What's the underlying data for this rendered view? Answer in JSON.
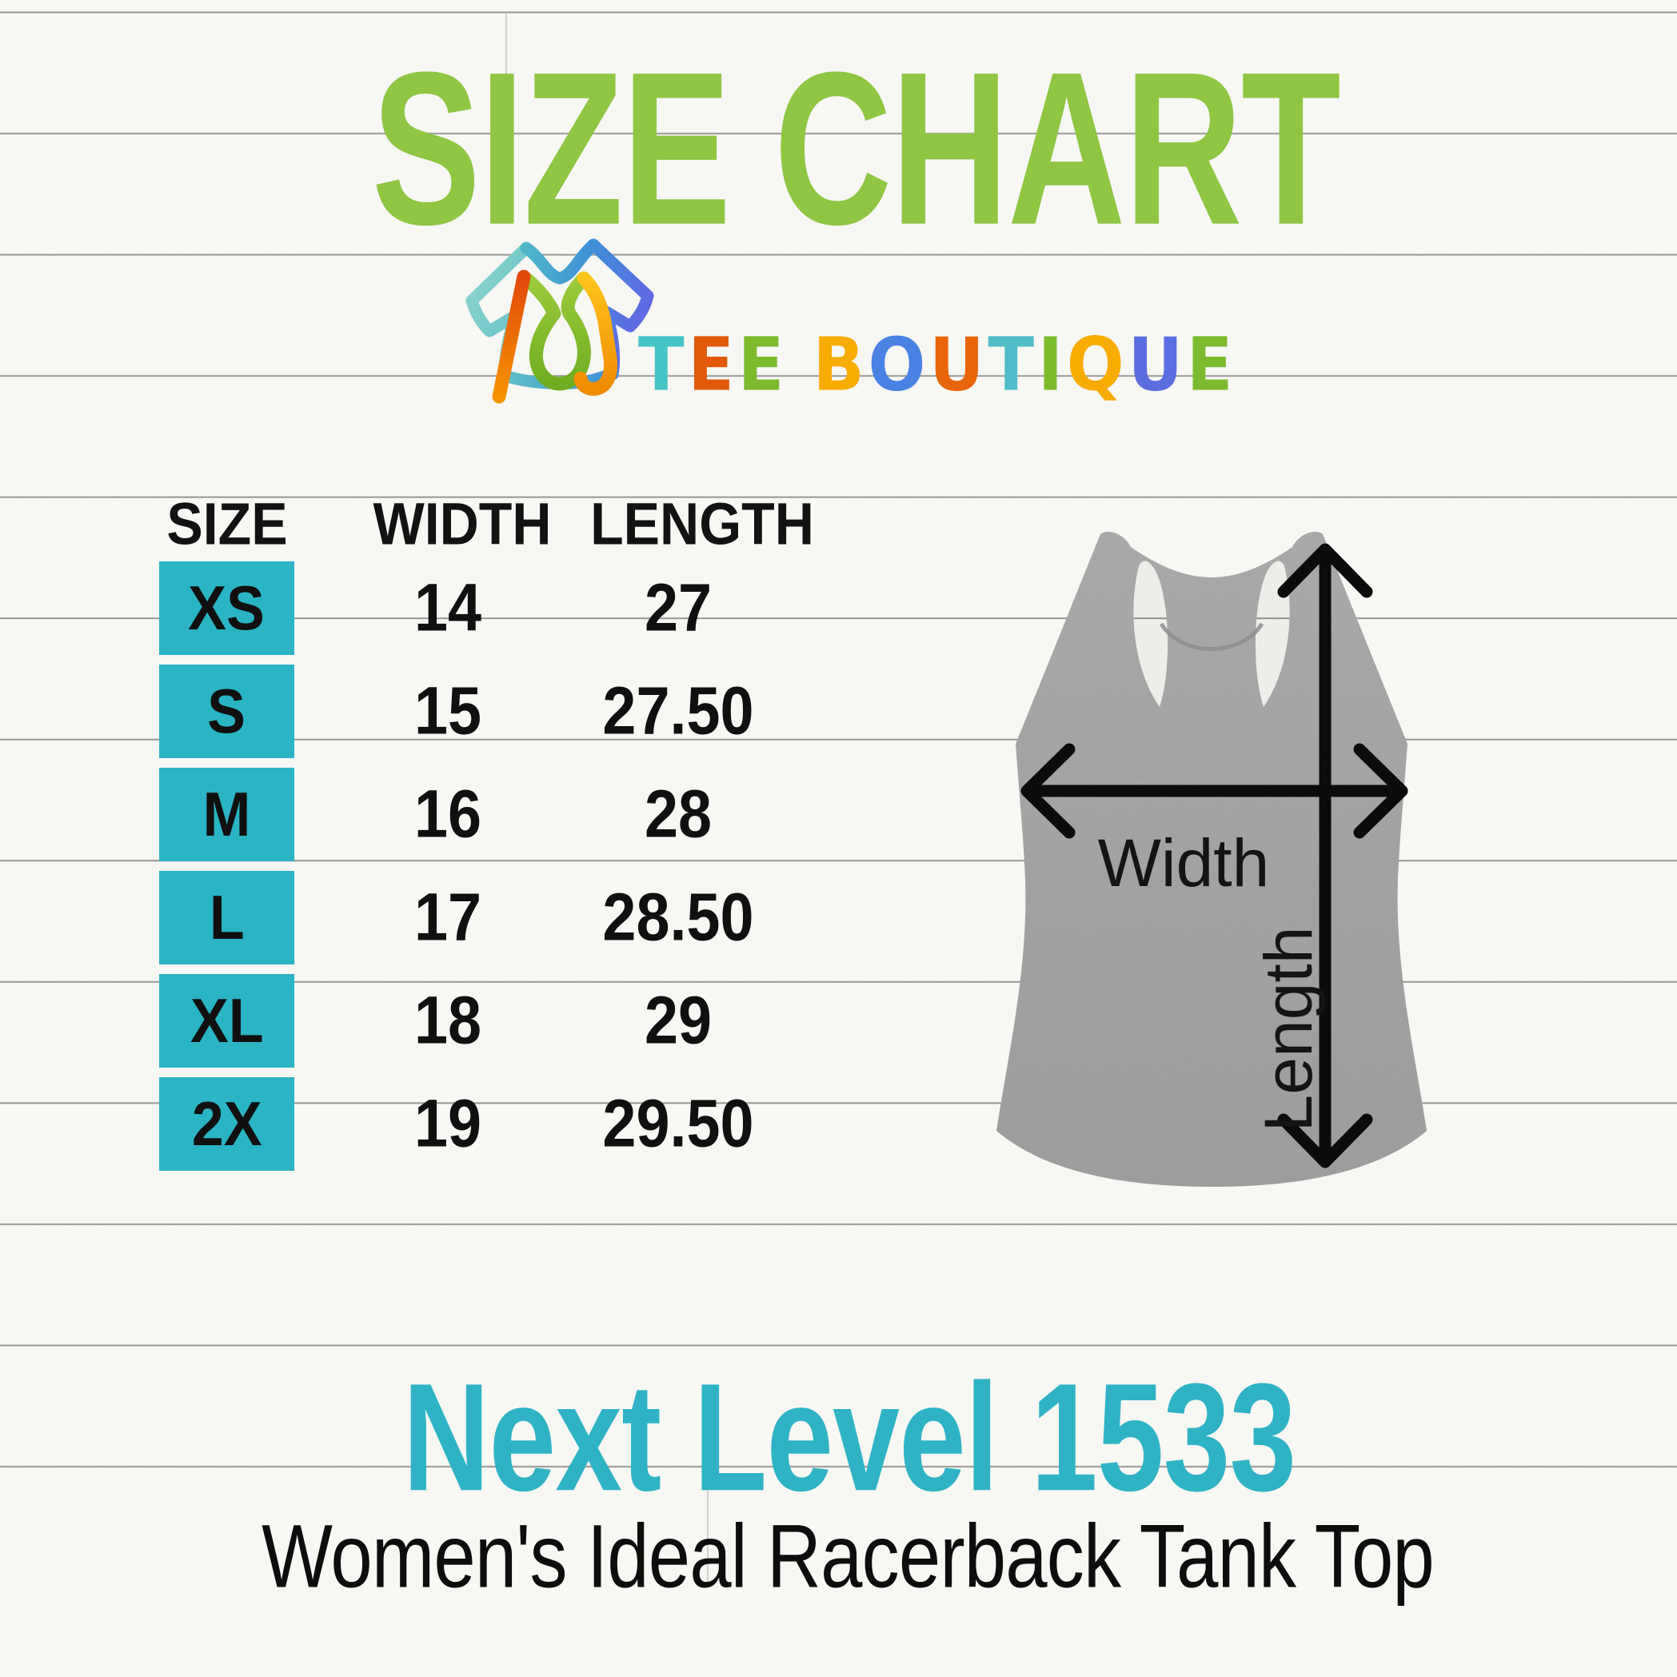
{
  "title": "SIZE CHART",
  "brand": {
    "text": "TEE BOUTIQUE",
    "letters": [
      {
        "ch": "T",
        "color": "#45c3c7"
      },
      {
        "ch": "E",
        "color": "#e05a0a"
      },
      {
        "ch": "E",
        "color": "#7dbb2e"
      },
      {
        "ch": " ",
        "color": "#000000"
      },
      {
        "ch": "B",
        "color": "#f8ab00"
      },
      {
        "ch": "O",
        "color": "#4a82e4"
      },
      {
        "ch": "U",
        "color": "#e8650a"
      },
      {
        "ch": "T",
        "color": "#4fbec8"
      },
      {
        "ch": "I",
        "color": "#7dbb2e"
      },
      {
        "ch": "Q",
        "color": "#f8ab00"
      },
      {
        "ch": "U",
        "color": "#5a6ee0"
      },
      {
        "ch": "E",
        "color": "#7dbb2e"
      }
    ]
  },
  "table": {
    "headers": [
      "SIZE",
      "WIDTH",
      "LENGTH"
    ],
    "rows": [
      {
        "size": "XS",
        "width": "14",
        "length": "27"
      },
      {
        "size": "S",
        "width": "15",
        "length": "27.50"
      },
      {
        "size": "M",
        "width": "16",
        "length": "28"
      },
      {
        "size": "L",
        "width": "17",
        "length": "28.50"
      },
      {
        "size": "XL",
        "width": "18",
        "length": "29"
      },
      {
        "size": "2X",
        "width": "19",
        "length": "29.50"
      }
    ]
  },
  "diagram": {
    "width_label": "Width",
    "length_label": "Length"
  },
  "product": {
    "model": "Next Level 1533",
    "name": "Women's Ideal Racerback Tank Top"
  },
  "colors": {
    "title_green": "#8fc642",
    "accent_teal": "#2ab4c4",
    "table_text": "#101010",
    "tank_gray": "#a9a9a9",
    "background": "#f7f7f4"
  }
}
